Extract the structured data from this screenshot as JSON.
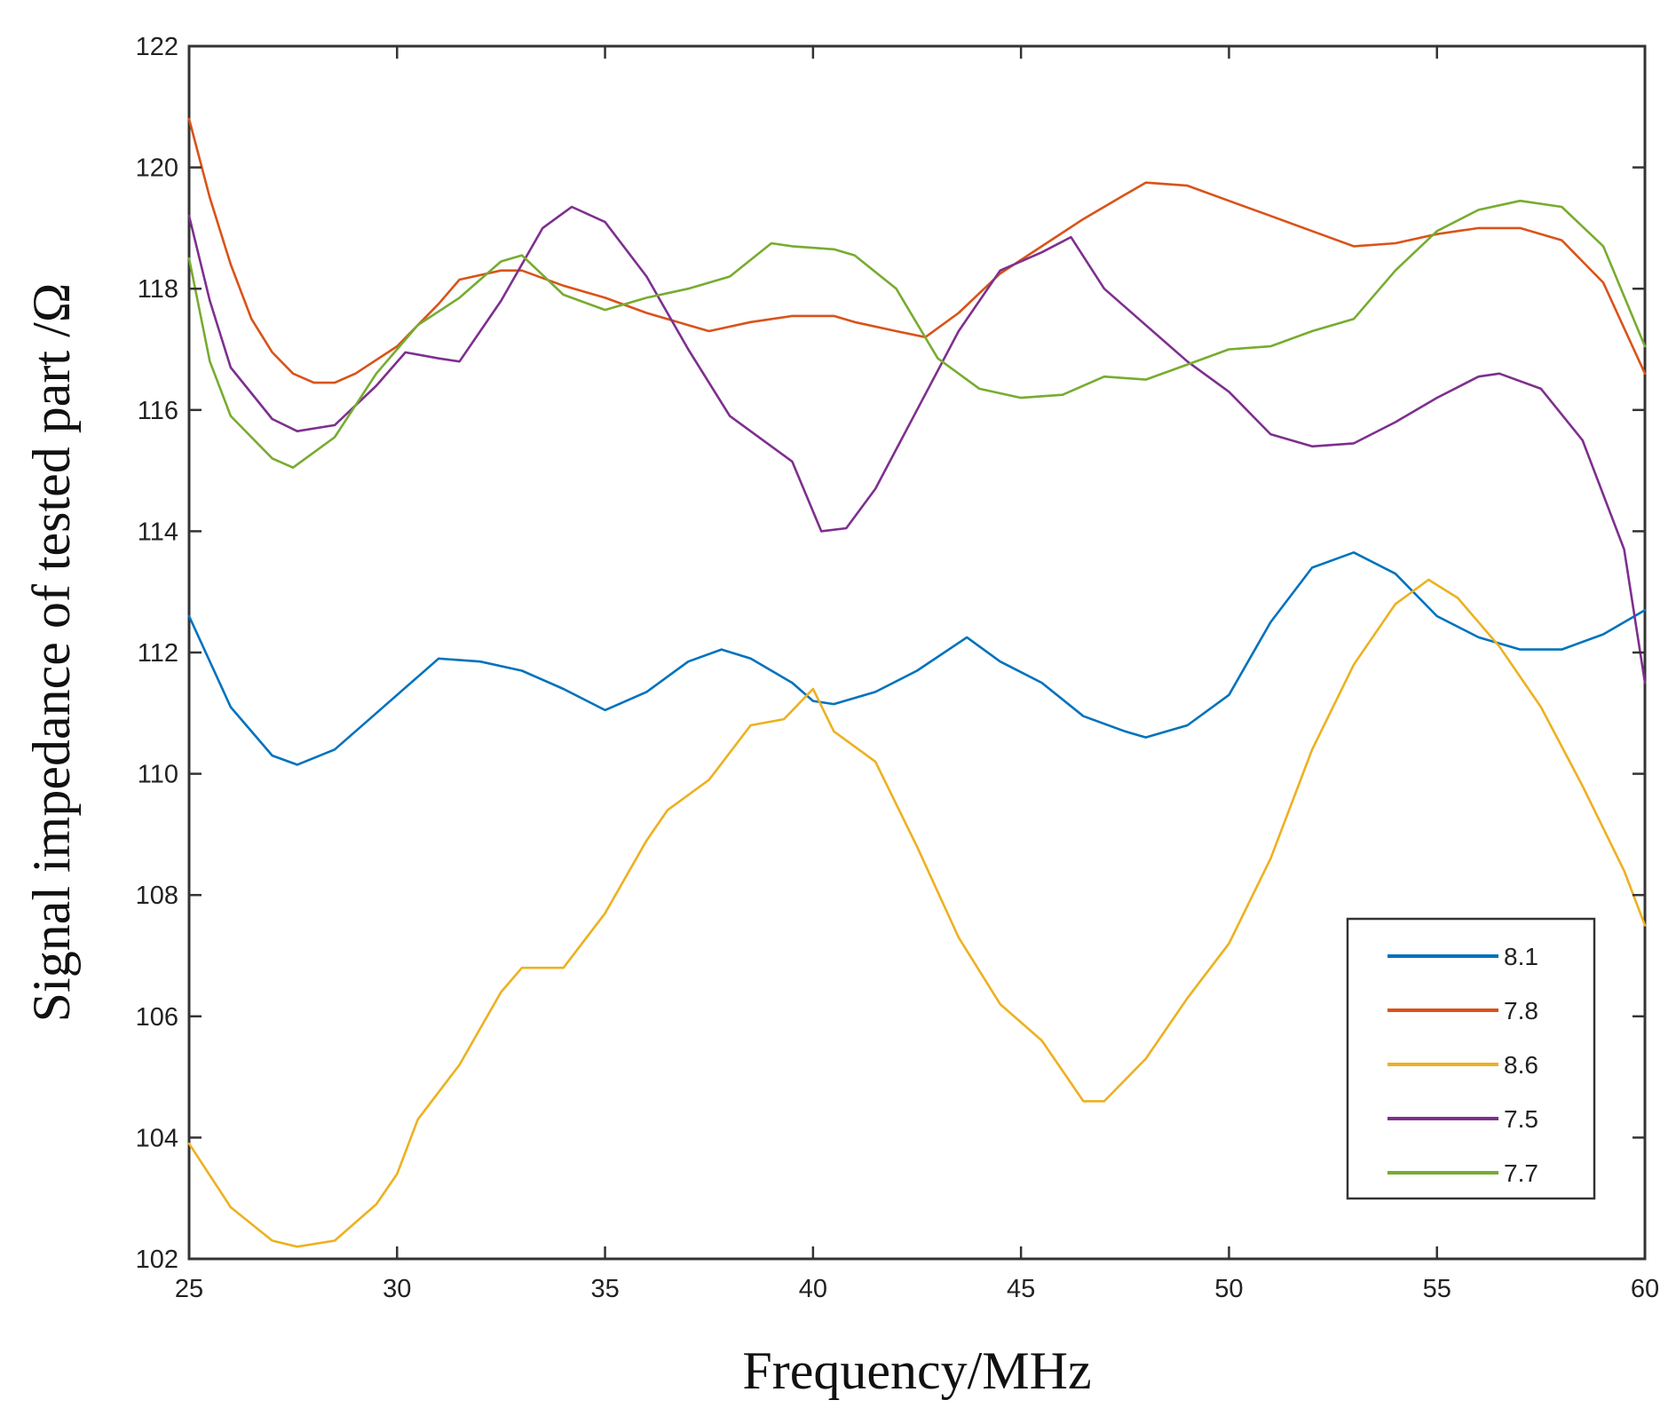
{
  "chart_data": {
    "type": "line",
    "title": "",
    "xlabel": "Frequency/MHz",
    "ylabel": "Signal impedance of tested part /Ω",
    "xlim": [
      25,
      60
    ],
    "ylim": [
      102,
      122
    ],
    "x_ticks": [
      25,
      30,
      35,
      40,
      45,
      50,
      55,
      60
    ],
    "y_ticks": [
      102,
      104,
      106,
      108,
      110,
      112,
      114,
      116,
      118,
      120,
      122
    ],
    "grid": false,
    "legend_position": "bottom-right",
    "series": [
      {
        "name": "8.1",
        "color": "#0072BD",
        "points": [
          [
            25,
            112.6
          ],
          [
            26,
            111.1
          ],
          [
            27,
            110.3
          ],
          [
            27.6,
            110.15
          ],
          [
            28.5,
            110.4
          ],
          [
            29.5,
            111.0
          ],
          [
            30.5,
            111.6
          ],
          [
            31,
            111.9
          ],
          [
            32,
            111.85
          ],
          [
            33,
            111.7
          ],
          [
            34,
            111.4
          ],
          [
            35,
            111.05
          ],
          [
            36,
            111.35
          ],
          [
            37,
            111.85
          ],
          [
            37.8,
            112.05
          ],
          [
            38.5,
            111.9
          ],
          [
            39.5,
            111.5
          ],
          [
            40,
            111.2
          ],
          [
            40.5,
            111.15
          ],
          [
            41.5,
            111.35
          ],
          [
            42.5,
            111.7
          ],
          [
            43.7,
            112.25
          ],
          [
            44.5,
            111.85
          ],
          [
            45.5,
            111.5
          ],
          [
            46.5,
            110.95
          ],
          [
            47.5,
            110.7
          ],
          [
            48,
            110.6
          ],
          [
            49,
            110.8
          ],
          [
            50,
            111.3
          ],
          [
            51,
            112.5
          ],
          [
            52,
            113.4
          ],
          [
            53,
            113.65
          ],
          [
            54,
            113.3
          ],
          [
            55,
            112.6
          ],
          [
            56,
            112.25
          ],
          [
            57,
            112.05
          ],
          [
            58,
            112.05
          ],
          [
            59,
            112.3
          ],
          [
            60,
            112.7
          ]
        ]
      },
      {
        "name": "7.8",
        "color": "#D95319",
        "points": [
          [
            25,
            120.8
          ],
          [
            25.5,
            119.5
          ],
          [
            26,
            118.4
          ],
          [
            26.5,
            117.5
          ],
          [
            27,
            116.95
          ],
          [
            27.5,
            116.6
          ],
          [
            28,
            116.45
          ],
          [
            28.5,
            116.45
          ],
          [
            29,
            116.6
          ],
          [
            30,
            117.05
          ],
          [
            31,
            117.75
          ],
          [
            31.5,
            118.15
          ],
          [
            32.5,
            118.3
          ],
          [
            33,
            118.3
          ],
          [
            34,
            118.05
          ],
          [
            35,
            117.85
          ],
          [
            36,
            117.6
          ],
          [
            37,
            117.4
          ],
          [
            37.5,
            117.3
          ],
          [
            38.5,
            117.45
          ],
          [
            39.5,
            117.55
          ],
          [
            40.5,
            117.55
          ],
          [
            41,
            117.45
          ],
          [
            42,
            117.3
          ],
          [
            42.7,
            117.2
          ],
          [
            43.5,
            117.6
          ],
          [
            44.5,
            118.25
          ],
          [
            45.5,
            118.7
          ],
          [
            46.5,
            119.15
          ],
          [
            47.5,
            119.55
          ],
          [
            48,
            119.75
          ],
          [
            49,
            119.7
          ],
          [
            50,
            119.45
          ],
          [
            51,
            119.2
          ],
          [
            52,
            118.95
          ],
          [
            53,
            118.7
          ],
          [
            54,
            118.75
          ],
          [
            55,
            118.9
          ],
          [
            56,
            119.0
          ],
          [
            57,
            119.0
          ],
          [
            58,
            118.8
          ],
          [
            59,
            118.1
          ],
          [
            60,
            116.6
          ]
        ]
      },
      {
        "name": "8.6",
        "color": "#EDB120",
        "points": [
          [
            25,
            103.9
          ],
          [
            26,
            102.85
          ],
          [
            27,
            102.3
          ],
          [
            27.6,
            102.2
          ],
          [
            28.5,
            102.3
          ],
          [
            29.5,
            102.9
          ],
          [
            30,
            103.4
          ],
          [
            30.5,
            104.3
          ],
          [
            31.5,
            105.2
          ],
          [
            32.5,
            106.4
          ],
          [
            33,
            106.8
          ],
          [
            34,
            106.8
          ],
          [
            35,
            107.7
          ],
          [
            36,
            108.9
          ],
          [
            36.5,
            109.4
          ],
          [
            37.5,
            109.9
          ],
          [
            38.5,
            110.8
          ],
          [
            39.3,
            110.9
          ],
          [
            40,
            111.4
          ],
          [
            40.5,
            110.7
          ],
          [
            41.5,
            110.2
          ],
          [
            42.5,
            108.8
          ],
          [
            43.5,
            107.3
          ],
          [
            44.5,
            106.2
          ],
          [
            45.5,
            105.6
          ],
          [
            46.5,
            104.6
          ],
          [
            47,
            104.6
          ],
          [
            48,
            105.3
          ],
          [
            49,
            106.3
          ],
          [
            50,
            107.2
          ],
          [
            51,
            108.6
          ],
          [
            52,
            110.4
          ],
          [
            53,
            111.8
          ],
          [
            54,
            112.8
          ],
          [
            54.8,
            113.2
          ],
          [
            55.5,
            112.9
          ],
          [
            56.5,
            112.1
          ],
          [
            57.5,
            111.1
          ],
          [
            58.5,
            109.8
          ],
          [
            59.5,
            108.4
          ],
          [
            60,
            107.5
          ]
        ]
      },
      {
        "name": "7.5",
        "color": "#7E2F8E",
        "points": [
          [
            25,
            119.2
          ],
          [
            25.5,
            117.8
          ],
          [
            26,
            116.7
          ],
          [
            27,
            115.85
          ],
          [
            27.6,
            115.65
          ],
          [
            28.5,
            115.75
          ],
          [
            29.5,
            116.4
          ],
          [
            30.2,
            116.95
          ],
          [
            31,
            116.85
          ],
          [
            31.5,
            116.8
          ],
          [
            32.5,
            117.8
          ],
          [
            33.5,
            119.0
          ],
          [
            34.2,
            119.35
          ],
          [
            35,
            119.1
          ],
          [
            36,
            118.2
          ],
          [
            37,
            117.0
          ],
          [
            38,
            115.9
          ],
          [
            39,
            115.4
          ],
          [
            39.5,
            115.15
          ],
          [
            40.2,
            114.0
          ],
          [
            40.8,
            114.05
          ],
          [
            41.5,
            114.7
          ],
          [
            42.5,
            116.0
          ],
          [
            43.5,
            117.3
          ],
          [
            44.5,
            118.3
          ],
          [
            45.5,
            118.6
          ],
          [
            46.2,
            118.85
          ],
          [
            47,
            118.0
          ],
          [
            48,
            117.4
          ],
          [
            49,
            116.8
          ],
          [
            50,
            116.3
          ],
          [
            51,
            115.6
          ],
          [
            52,
            115.4
          ],
          [
            53,
            115.45
          ],
          [
            54,
            115.8
          ],
          [
            55,
            116.2
          ],
          [
            56,
            116.55
          ],
          [
            56.5,
            116.6
          ],
          [
            57.5,
            116.35
          ],
          [
            58.5,
            115.5
          ],
          [
            59.5,
            113.7
          ],
          [
            60,
            111.5
          ]
        ]
      },
      {
        "name": "7.7",
        "color": "#77AC30",
        "points": [
          [
            25,
            118.5
          ],
          [
            25.5,
            116.8
          ],
          [
            26,
            115.9
          ],
          [
            27,
            115.2
          ],
          [
            27.5,
            115.05
          ],
          [
            28.5,
            115.55
          ],
          [
            29.5,
            116.6
          ],
          [
            30.5,
            117.4
          ],
          [
            31.5,
            117.85
          ],
          [
            32.5,
            118.45
          ],
          [
            33,
            118.55
          ],
          [
            34,
            117.9
          ],
          [
            35,
            117.65
          ],
          [
            36,
            117.85
          ],
          [
            37,
            118.0
          ],
          [
            38,
            118.2
          ],
          [
            39,
            118.75
          ],
          [
            39.5,
            118.7
          ],
          [
            40.5,
            118.65
          ],
          [
            41,
            118.55
          ],
          [
            42,
            118.0
          ],
          [
            43,
            116.85
          ],
          [
            44,
            116.35
          ],
          [
            45,
            116.2
          ],
          [
            46,
            116.25
          ],
          [
            47,
            116.55
          ],
          [
            48,
            116.5
          ],
          [
            49,
            116.75
          ],
          [
            50,
            117.0
          ],
          [
            51,
            117.05
          ],
          [
            52,
            117.3
          ],
          [
            53,
            117.5
          ],
          [
            54,
            118.3
          ],
          [
            55,
            118.95
          ],
          [
            56,
            119.3
          ],
          [
            57,
            119.45
          ],
          [
            58,
            119.35
          ],
          [
            59,
            118.7
          ],
          [
            60,
            117.05
          ]
        ]
      }
    ]
  }
}
